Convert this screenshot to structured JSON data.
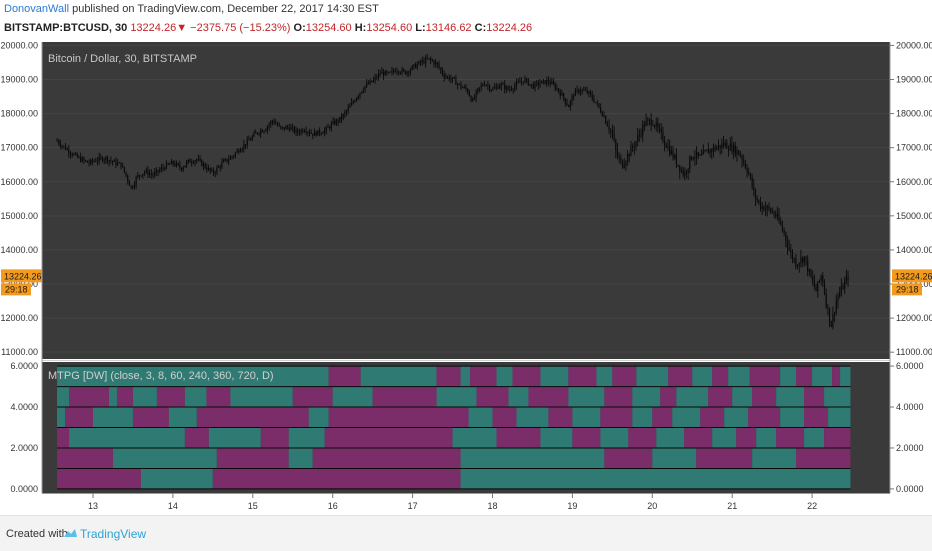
{
  "header": {
    "author": "DonovanWall",
    "published_text": "published on TradingView.com, December 22, 2017 14:30 EST",
    "symbol": "BITSTAMP:BTCUSD, 30",
    "last": "13224.26",
    "arrow": "▼",
    "change": "−2375.75 (−15.23%)",
    "o_label": "O:",
    "o_value": "13254.60",
    "h_label": "H:",
    "h_value": "13254.60",
    "l_label": "L:",
    "l_value": "13146.62",
    "c_label": "C:",
    "c_value": "13224.26"
  },
  "footer": {
    "created_with": "Created with",
    "brand": "TradingView",
    "logo_icon": "tradingview-cloud-icon"
  },
  "colors": {
    "pane_bg": "#3a3a3a",
    "candle": "#0a0a0a",
    "teal": "#2f7a72",
    "purple": "#7a2d68",
    "price_tag": "#f29a1d"
  },
  "chart_data": [
    {
      "type": "candlestick",
      "title": "Bitcoin / Dollar, 30, BITSTAMP",
      "y_ticks": [
        "20000.00",
        "19000.00",
        "18000.00",
        "17000.00",
        "16000.00",
        "15000.00",
        "14000.00",
        "13000.00",
        "12000.00",
        "11000.00"
      ],
      "ylim": [
        10800,
        20100
      ],
      "x_ticks": [
        "13",
        "14",
        "15",
        "16",
        "17",
        "18",
        "19",
        "20",
        "21",
        "22"
      ],
      "last_price_label": "13224.26",
      "countdown_label": "29:18",
      "close_path": [
        [
          12.55,
          17200
        ],
        [
          12.62,
          17050
        ],
        [
          12.7,
          16900
        ],
        [
          12.78,
          16750
        ],
        [
          12.85,
          16650
        ],
        [
          12.95,
          16550
        ],
        [
          13.05,
          16650
        ],
        [
          13.15,
          16700
        ],
        [
          13.28,
          16550
        ],
        [
          13.35,
          16500
        ],
        [
          13.42,
          16150
        ],
        [
          13.48,
          15800
        ],
        [
          13.55,
          16150
        ],
        [
          13.65,
          16300
        ],
        [
          13.75,
          16200
        ],
        [
          13.9,
          16450
        ],
        [
          14.0,
          16550
        ],
        [
          14.1,
          16400
        ],
        [
          14.2,
          16600
        ],
        [
          14.3,
          16650
        ],
        [
          14.4,
          16450
        ],
        [
          14.5,
          16250
        ],
        [
          14.62,
          16550
        ],
        [
          14.72,
          16700
        ],
        [
          14.85,
          17000
        ],
        [
          14.95,
          17200
        ],
        [
          15.05,
          17450
        ],
        [
          15.15,
          17550
        ],
        [
          15.25,
          17800
        ],
        [
          15.35,
          17550
        ],
        [
          15.45,
          17600
        ],
        [
          15.55,
          17450
        ],
        [
          15.65,
          17550
        ],
        [
          15.75,
          17400
        ],
        [
          15.9,
          17500
        ],
        [
          16.0,
          17700
        ],
        [
          16.1,
          17850
        ],
        [
          16.2,
          18150
        ],
        [
          16.3,
          18500
        ],
        [
          16.4,
          18800
        ],
        [
          16.5,
          18950
        ],
        [
          16.6,
          19200
        ],
        [
          16.7,
          19150
        ],
        [
          16.8,
          19300
        ],
        [
          16.9,
          19200
        ],
        [
          17.0,
          19350
        ],
        [
          17.1,
          19500
        ],
        [
          17.2,
          19600
        ],
        [
          17.3,
          19450
        ],
        [
          17.4,
          19100
        ],
        [
          17.5,
          19000
        ],
        [
          17.6,
          18800
        ],
        [
          17.68,
          18700
        ],
        [
          17.75,
          18350
        ],
        [
          17.82,
          18700
        ],
        [
          17.9,
          18900
        ],
        [
          18.0,
          18700
        ],
        [
          18.1,
          18850
        ],
        [
          18.2,
          18700
        ],
        [
          18.3,
          18850
        ],
        [
          18.4,
          19000
        ],
        [
          18.5,
          18800
        ],
        [
          18.6,
          18900
        ],
        [
          18.7,
          18950
        ],
        [
          18.8,
          18750
        ],
        [
          18.88,
          18500
        ],
        [
          18.95,
          18200
        ],
        [
          19.02,
          18600
        ],
        [
          19.1,
          18700
        ],
        [
          19.2,
          18600
        ],
        [
          19.3,
          18300
        ],
        [
          19.4,
          17900
        ],
        [
          19.5,
          17400
        ],
        [
          19.55,
          16800
        ],
        [
          19.62,
          16500
        ],
        [
          19.7,
          16800
        ],
        [
          19.8,
          17200
        ],
        [
          19.9,
          17700
        ],
        [
          20.0,
          17800
        ],
        [
          20.1,
          17400
        ],
        [
          20.2,
          17000
        ],
        [
          20.3,
          16600
        ],
        [
          20.4,
          16200
        ],
        [
          20.5,
          16800
        ],
        [
          20.6,
          16700
        ],
        [
          20.7,
          16900
        ],
        [
          20.8,
          17000
        ],
        [
          20.9,
          17100
        ],
        [
          21.0,
          17000
        ],
        [
          21.1,
          16800
        ],
        [
          21.2,
          16300
        ],
        [
          21.28,
          15600
        ],
        [
          21.35,
          15300
        ],
        [
          21.45,
          15200
        ],
        [
          21.55,
          15000
        ],
        [
          21.65,
          14500
        ],
        [
          21.72,
          13950
        ],
        [
          21.8,
          13600
        ],
        [
          21.9,
          13800
        ],
        [
          21.98,
          13200
        ],
        [
          22.05,
          12800
        ],
        [
          22.12,
          13300
        ],
        [
          22.18,
          12400
        ],
        [
          22.24,
          11800
        ],
        [
          22.3,
          12500
        ],
        [
          22.38,
          12900
        ],
        [
          22.45,
          13224
        ]
      ]
    },
    {
      "type": "heatmap",
      "title": "MTPG [DW] (close, 3, 8, 60, 240, 360, 720, D)",
      "y_ticks": [
        "6.0000",
        "4.0000",
        "2.0000",
        "0.0000"
      ],
      "ylim": [
        -0.2,
        6.2
      ],
      "states": [
        1,
        0
      ],
      "rows": [
        {
          "y_top": 6,
          "segments": [
            [
              12.55,
              15.95,
              1
            ],
            [
              15.95,
              16.35,
              0
            ],
            [
              16.35,
              17.3,
              1
            ],
            [
              17.3,
              17.6,
              0
            ],
            [
              17.6,
              17.72,
              1
            ],
            [
              17.72,
              18.05,
              0
            ],
            [
              18.05,
              18.25,
              1
            ],
            [
              18.25,
              18.6,
              0
            ],
            [
              18.6,
              18.95,
              1
            ],
            [
              18.95,
              19.3,
              0
            ],
            [
              19.3,
              19.5,
              1
            ],
            [
              19.5,
              19.8,
              0
            ],
            [
              19.8,
              20.2,
              1
            ],
            [
              20.2,
              20.5,
              0
            ],
            [
              20.5,
              20.75,
              1
            ],
            [
              20.75,
              20.95,
              0
            ],
            [
              20.95,
              21.22,
              1
            ],
            [
              21.22,
              21.6,
              0
            ],
            [
              21.6,
              21.8,
              1
            ],
            [
              21.8,
              22.0,
              0
            ],
            [
              22.0,
              22.25,
              1
            ],
            [
              22.25,
              22.35,
              0
            ],
            [
              22.35,
              22.48,
              1
            ]
          ]
        },
        {
          "y_top": 5,
          "segments": [
            [
              12.55,
              12.7,
              1
            ],
            [
              12.7,
              13.2,
              0
            ],
            [
              13.2,
              13.3,
              1
            ],
            [
              13.3,
              13.5,
              0
            ],
            [
              13.5,
              13.8,
              1
            ],
            [
              13.8,
              14.15,
              0
            ],
            [
              14.15,
              14.42,
              1
            ],
            [
              14.42,
              14.72,
              0
            ],
            [
              14.72,
              15.5,
              1
            ],
            [
              15.5,
              16.0,
              0
            ],
            [
              16.0,
              16.5,
              1
            ],
            [
              16.5,
              17.3,
              0
            ],
            [
              17.3,
              17.8,
              1
            ],
            [
              17.8,
              18.2,
              0
            ],
            [
              18.2,
              18.45,
              1
            ],
            [
              18.45,
              18.95,
              0
            ],
            [
              18.95,
              19.4,
              1
            ],
            [
              19.4,
              19.75,
              0
            ],
            [
              19.75,
              20.1,
              1
            ],
            [
              20.1,
              20.3,
              0
            ],
            [
              20.3,
              20.7,
              1
            ],
            [
              20.7,
              21.0,
              0
            ],
            [
              21.0,
              21.25,
              1
            ],
            [
              21.25,
              21.55,
              0
            ],
            [
              21.55,
              21.9,
              1
            ],
            [
              21.9,
              22.15,
              0
            ],
            [
              22.15,
              22.48,
              1
            ]
          ]
        },
        {
          "y_top": 4,
          "segments": [
            [
              12.55,
              12.65,
              1
            ],
            [
              12.65,
              13.0,
              0
            ],
            [
              13.0,
              13.5,
              1
            ],
            [
              13.5,
              13.95,
              0
            ],
            [
              13.95,
              14.3,
              1
            ],
            [
              14.3,
              15.7,
              0
            ],
            [
              15.7,
              15.95,
              1
            ],
            [
              15.95,
              17.7,
              0
            ],
            [
              17.7,
              18.0,
              1
            ],
            [
              18.0,
              18.3,
              0
            ],
            [
              18.3,
              18.7,
              1
            ],
            [
              18.7,
              19.0,
              0
            ],
            [
              19.0,
              19.35,
              1
            ],
            [
              19.35,
              19.75,
              0
            ],
            [
              19.75,
              20.0,
              1
            ],
            [
              20.0,
              20.25,
              0
            ],
            [
              20.25,
              20.6,
              1
            ],
            [
              20.6,
              20.9,
              0
            ],
            [
              20.9,
              21.2,
              1
            ],
            [
              21.2,
              21.6,
              0
            ],
            [
              21.6,
              21.9,
              1
            ],
            [
              21.9,
              22.2,
              0
            ],
            [
              22.2,
              22.48,
              1
            ]
          ]
        },
        {
          "y_top": 3,
          "segments": [
            [
              12.55,
              12.7,
              0
            ],
            [
              12.7,
              14.15,
              1
            ],
            [
              14.15,
              14.45,
              0
            ],
            [
              14.45,
              15.1,
              1
            ],
            [
              15.1,
              15.45,
              0
            ],
            [
              15.45,
              15.9,
              1
            ],
            [
              15.9,
              17.5,
              0
            ],
            [
              17.5,
              18.05,
              1
            ],
            [
              18.05,
              18.6,
              0
            ],
            [
              18.6,
              19.0,
              1
            ],
            [
              19.0,
              19.35,
              0
            ],
            [
              19.35,
              19.7,
              1
            ],
            [
              19.7,
              20.05,
              0
            ],
            [
              20.05,
              20.4,
              1
            ],
            [
              20.4,
              20.75,
              0
            ],
            [
              20.75,
              21.05,
              1
            ],
            [
              21.05,
              21.3,
              0
            ],
            [
              21.3,
              21.55,
              1
            ],
            [
              21.55,
              21.9,
              0
            ],
            [
              21.9,
              22.15,
              1
            ],
            [
              22.15,
              22.48,
              0
            ]
          ]
        },
        {
          "y_top": 2,
          "segments": [
            [
              12.55,
              13.25,
              0
            ],
            [
              13.25,
              14.55,
              1
            ],
            [
              14.55,
              15.45,
              0
            ],
            [
              15.45,
              15.75,
              1
            ],
            [
              15.75,
              17.6,
              0
            ],
            [
              17.6,
              19.4,
              1
            ],
            [
              19.4,
              20.0,
              0
            ],
            [
              20.0,
              20.55,
              1
            ],
            [
              20.55,
              21.25,
              0
            ],
            [
              21.25,
              21.8,
              1
            ],
            [
              21.8,
              22.48,
              0
            ]
          ]
        },
        {
          "y_top": 1,
          "segments": [
            [
              12.55,
              13.6,
              0
            ],
            [
              13.6,
              14.5,
              1
            ],
            [
              14.5,
              17.6,
              0
            ],
            [
              17.6,
              22.48,
              1
            ]
          ]
        }
      ]
    }
  ]
}
